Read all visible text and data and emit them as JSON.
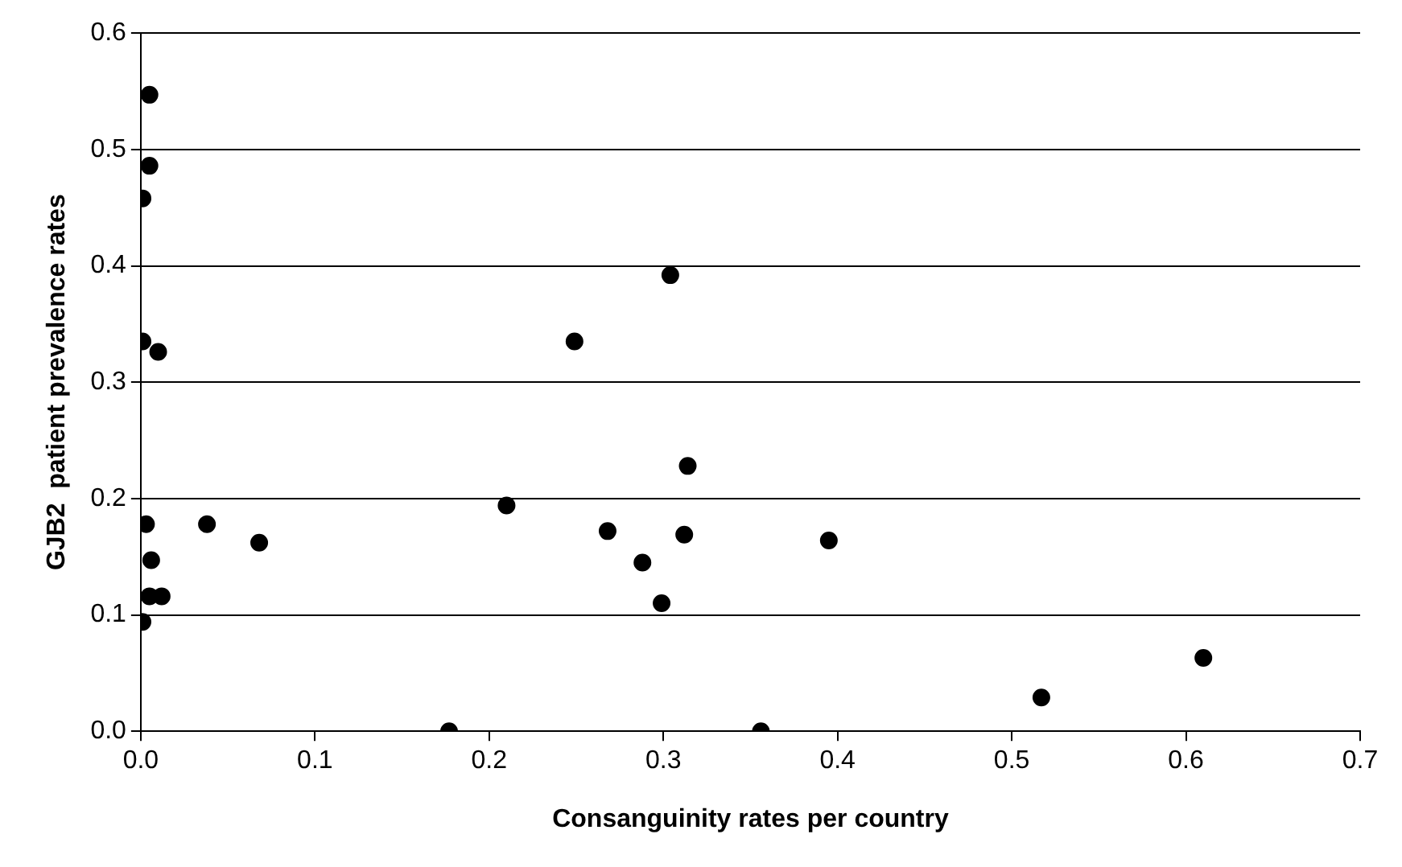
{
  "chart_data": {
    "type": "scatter",
    "xlabel": "Consanguinity rates per country",
    "ylabel": "GJB2  patient prevalence rates",
    "x": [
      0.005,
      0.005,
      0.001,
      0.001,
      0.01,
      0.003,
      0.038,
      0.068,
      0.006,
      0.005,
      0.012,
      0.001,
      0.304,
      0.249,
      0.314,
      0.21,
      0.268,
      0.312,
      0.288,
      0.299,
      0.177,
      0.395,
      0.356,
      0.517,
      0.61
    ],
    "series": [
      {
        "color": "#000000",
        "values": [
          0.547,
          0.486,
          0.458,
          0.335,
          0.326,
          0.178,
          0.178,
          0.162,
          0.147,
          0.116,
          0.116,
          0.094,
          0.392,
          0.335,
          0.228,
          0.194,
          0.172,
          0.169,
          0.145,
          0.11,
          0.0,
          0.164,
          0.0,
          0.029,
          0.063
        ]
      }
    ],
    "xlim": [
      0,
      0.7
    ],
    "xticks": [
      {
        "value": 0,
        "label": "0.0"
      },
      0.1,
      0.2,
      0.3,
      0.4,
      0.5,
      0.6,
      0.7
    ],
    "ylim": [
      0,
      0.6
    ],
    "yticks": [
      {
        "value": 0,
        "label": "0.0"
      },
      0.1,
      0.2,
      0.3,
      0.4,
      0.5,
      0.6
    ],
    "grid": "y",
    "legend": false,
    "marker": "circle"
  }
}
